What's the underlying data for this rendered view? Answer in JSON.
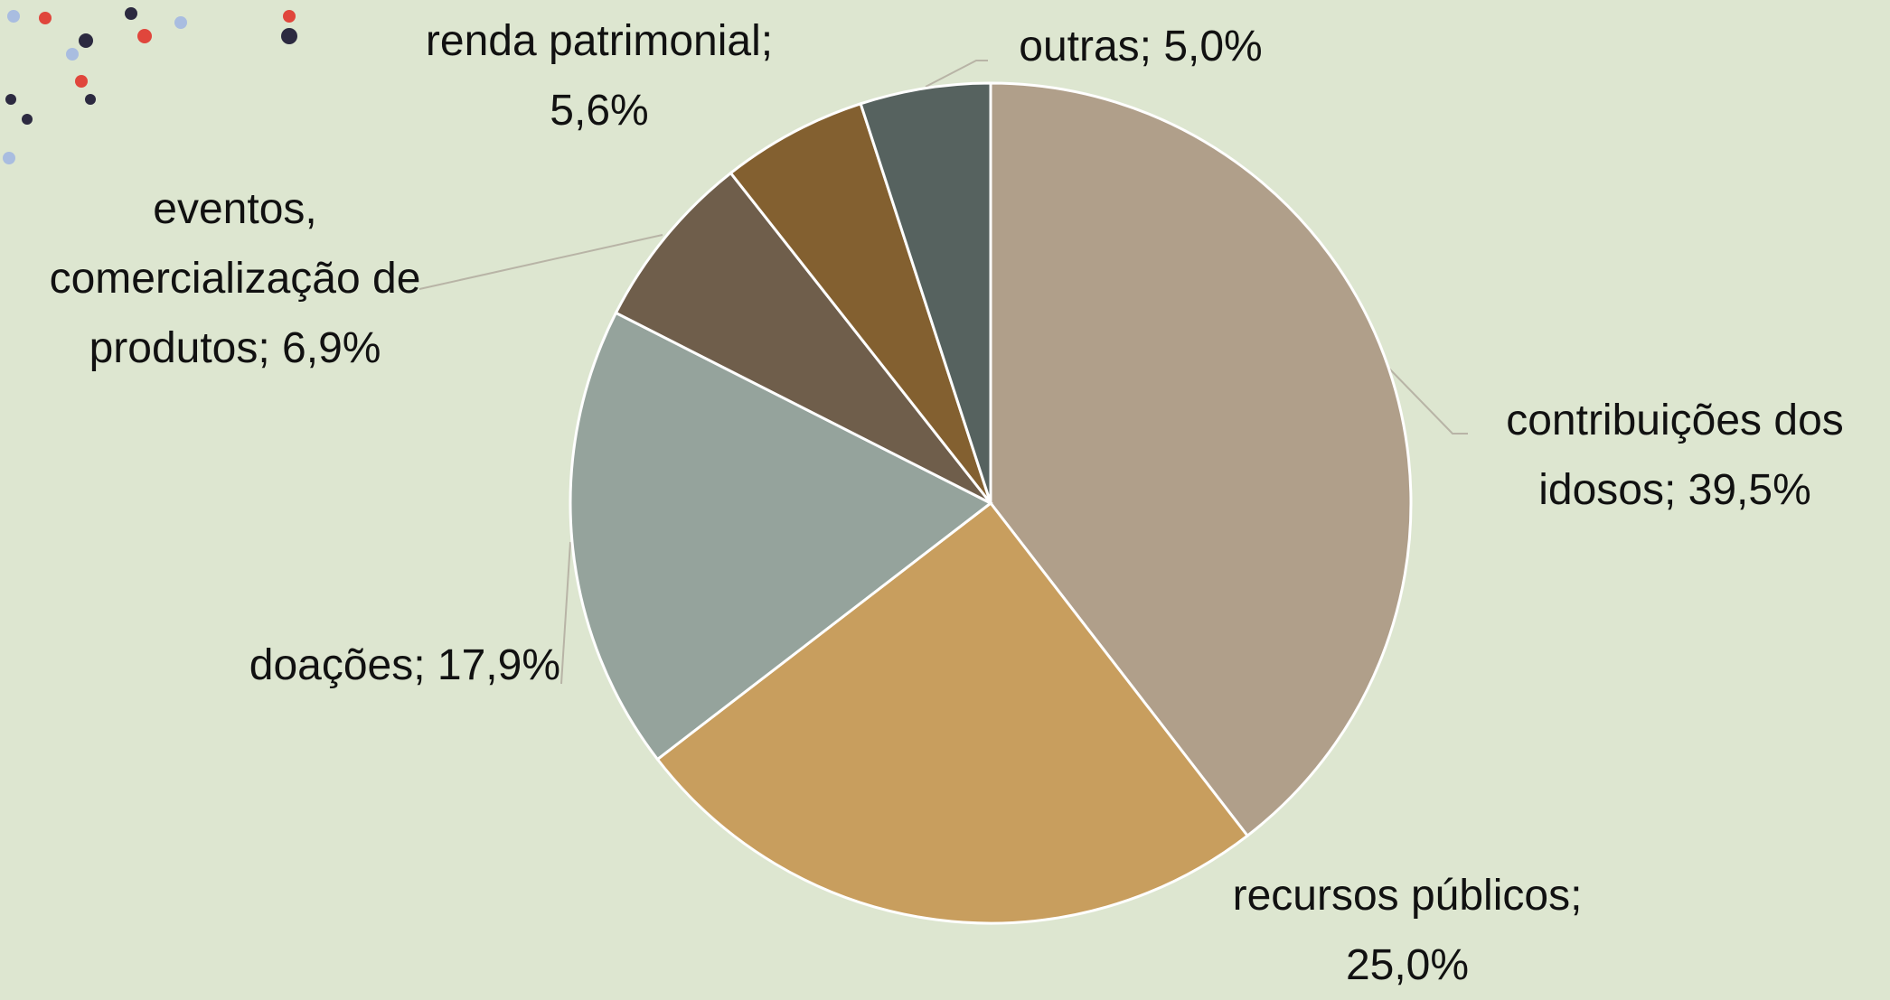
{
  "chart_data": {
    "type": "pie",
    "values": [
      39.5,
      25.0,
      17.9,
      6.9,
      5.6,
      5.0
    ],
    "value_labels": [
      "contribuições dos idosos; 39,5%",
      "recursos públicos; 25,0%",
      "doações; 17,9%",
      "eventos, comercialização de produtos; 6,9%",
      "renda patrimonial; 5,6%",
      "outras; 5,0%"
    ],
    "colors": [
      "#b09f8a",
      "#c89e5e",
      "#95a39c",
      "#6f5e4b",
      "#836030",
      "#56625f"
    ]
  }
}
